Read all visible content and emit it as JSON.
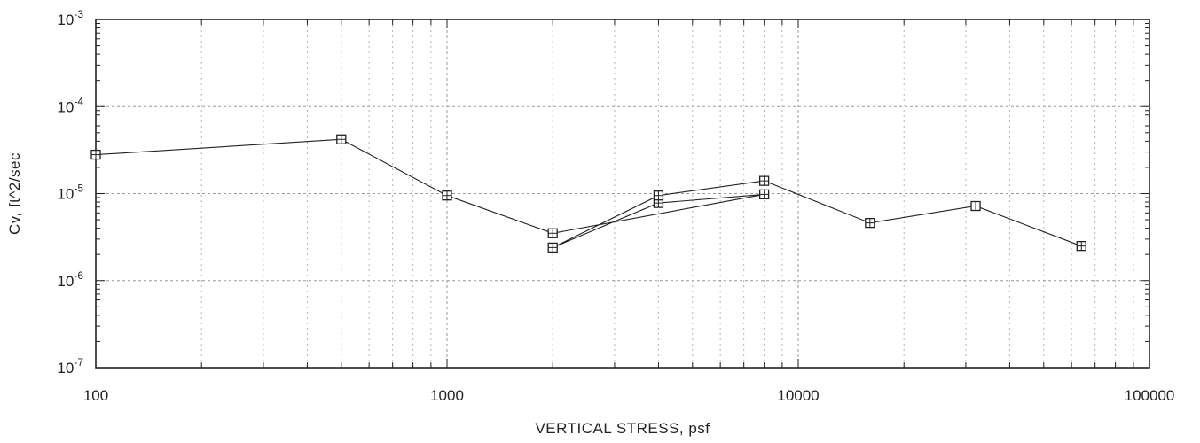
{
  "chart_data": {
    "type": "line",
    "xlabel": "VERTICAL STRESS, psf",
    "ylabel": "Cv, ft^2/sec",
    "xscale": "log",
    "yscale": "log",
    "xlim": [
      100,
      100000
    ],
    "ylim": [
      1e-07,
      0.001
    ],
    "grid": true,
    "x_tick_labels": [
      "100",
      "1000",
      "10000",
      "100000"
    ],
    "y_tick_labels": [
      {
        "base": "10",
        "exp": "-7"
      },
      {
        "base": "10",
        "exp": "-6"
      },
      {
        "base": "10",
        "exp": "-5"
      },
      {
        "base": "10",
        "exp": "-4"
      },
      {
        "base": "10",
        "exp": "-3"
      }
    ],
    "series": [
      {
        "marker": "square",
        "points": [
          [
            100,
            2.8e-05
          ],
          [
            500,
            4.2e-05
          ],
          [
            1000,
            9.5e-06
          ],
          [
            2000,
            3.5e-06
          ],
          [
            8000,
            9.8e-06
          ],
          [
            4000,
            7.8e-06
          ],
          [
            2000,
            2.4e-06
          ],
          [
            4000,
            9.5e-06
          ],
          [
            8000,
            1.4e-05
          ],
          [
            16000,
            4.6e-06
          ],
          [
            32000,
            7.2e-06
          ],
          [
            64000,
            2.5e-06
          ]
        ]
      }
    ]
  }
}
